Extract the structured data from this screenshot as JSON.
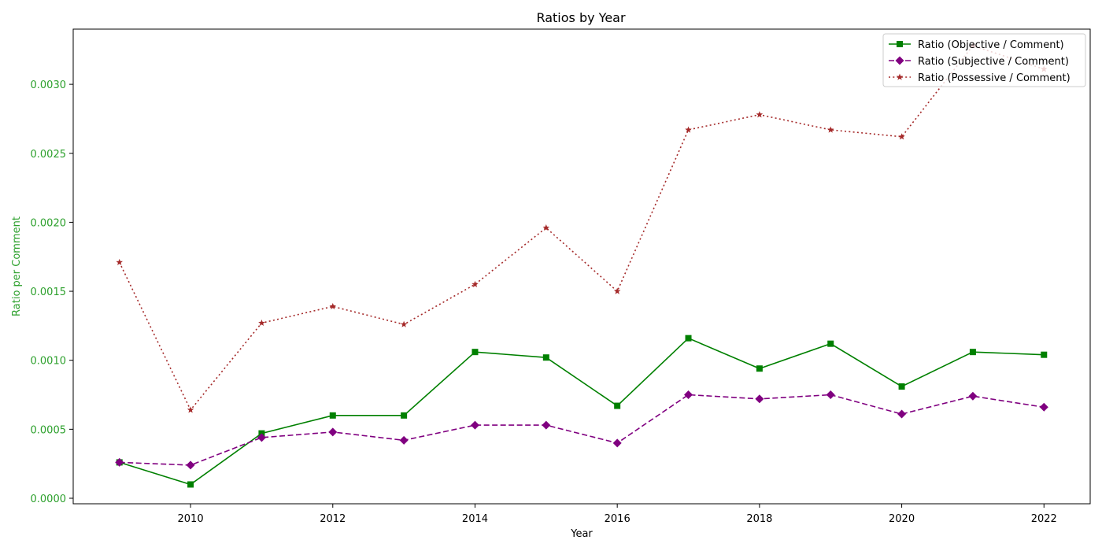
{
  "chart_data": {
    "type": "line",
    "title": "Ratios by Year",
    "xlabel": "Year",
    "ylabel": "Ratio per Comment",
    "x": [
      2009,
      2010,
      2011,
      2012,
      2013,
      2014,
      2015,
      2016,
      2017,
      2018,
      2019,
      2020,
      2021,
      2022
    ],
    "xlim": [
      2008.35,
      2022.65
    ],
    "ylim": [
      -4e-05,
      0.0034
    ],
    "xticks": [
      2010,
      2012,
      2014,
      2016,
      2018,
      2020,
      2022
    ],
    "yticks": [
      0.0,
      0.0005,
      0.001,
      0.0015,
      0.002,
      0.0025,
      0.003
    ],
    "ytick_labels": [
      "0.0000",
      "0.0005",
      "0.0010",
      "0.0015",
      "0.0020",
      "0.0025",
      "0.0030"
    ],
    "grid": false,
    "legend_position": "top-right",
    "ylabel_color": "#2ca02c",
    "series": [
      {
        "name": "Ratio (Objective / Comment)",
        "color": "#008000",
        "linestyle": "solid",
        "marker": "square",
        "values": [
          0.00026,
          0.0001,
          0.00047,
          0.0006,
          0.0006,
          0.00106,
          0.00102,
          0.00067,
          0.00116,
          0.00094,
          0.00112,
          0.00081,
          0.00106,
          0.00104
        ]
      },
      {
        "name": "Ratio (Subjective / Comment)",
        "color": "#800080",
        "linestyle": "dashed",
        "marker": "diamond",
        "values": [
          0.00026,
          0.00024,
          0.00044,
          0.00048,
          0.00042,
          0.00053,
          0.00053,
          0.0004,
          0.00075,
          0.00072,
          0.00075,
          0.00061,
          0.00074,
          0.00066
        ]
      },
      {
        "name": "Ratio (Possessive / Comment)",
        "color": "#a52a2a",
        "linestyle": "dotted",
        "marker": "star",
        "values": [
          0.00171,
          0.00064,
          0.00127,
          0.00139,
          0.00126,
          0.00155,
          0.00196,
          0.0015,
          0.00267,
          0.00278,
          0.00267,
          0.00262,
          0.00328,
          0.00311
        ]
      }
    ]
  }
}
